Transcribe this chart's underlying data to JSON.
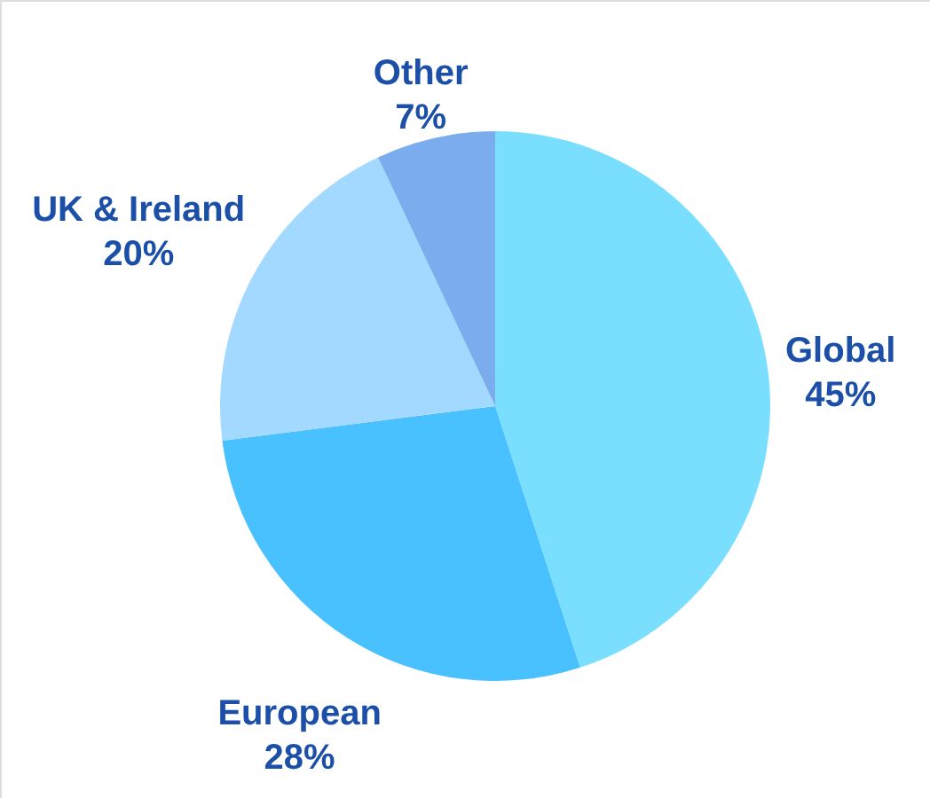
{
  "chart_data": {
    "type": "pie",
    "categories": [
      "Global",
      "European",
      "UK & Ireland",
      "Other"
    ],
    "values": [
      45,
      28,
      20,
      7
    ],
    "colors": [
      "#7adfff",
      "#4ac1ff",
      "#a3d8ff",
      "#7aacee"
    ],
    "value_labels": [
      "45%",
      "28%",
      "20%",
      "7%"
    ]
  }
}
